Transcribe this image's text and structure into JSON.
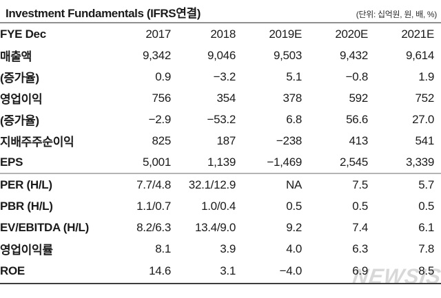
{
  "header": {
    "title": "Investment Fundamentals (IFRS연결)",
    "unit_note": "(단위: 십억원, 원, 배, %)"
  },
  "chart_data": {
    "type": "table",
    "title": "Investment Fundamentals (IFRS연결)",
    "unit": "십억원, 원, 배, %",
    "columns": [
      "FYE Dec",
      "2017",
      "2018",
      "2019E",
      "2020E",
      "2021E"
    ],
    "rows": [
      {
        "label": "매출액",
        "values": [
          "9,342",
          "9,046",
          "9,503",
          "9,432",
          "9,614"
        ]
      },
      {
        "label": "(증가율)",
        "values": [
          "0.9",
          "−3.2",
          "5.1",
          "−0.8",
          "1.9"
        ]
      },
      {
        "label": "영업이익",
        "values": [
          "756",
          "354",
          "378",
          "592",
          "752"
        ]
      },
      {
        "label": "(증가율)",
        "values": [
          "−2.9",
          "−53.2",
          "6.8",
          "56.6",
          "27.0"
        ]
      },
      {
        "label": "지배주주순이익",
        "values": [
          "825",
          "187",
          "−238",
          "413",
          "541"
        ]
      },
      {
        "label": "EPS",
        "values": [
          "5,001",
          "1,139",
          "−1,469",
          "2,545",
          "3,339"
        ],
        "section_end": true
      },
      {
        "label": "PER (H/L)",
        "values": [
          "7.7/4.8",
          "32.1/12.9",
          "NA",
          "7.5",
          "5.7"
        ]
      },
      {
        "label": "PBR (H/L)",
        "values": [
          "1.1/0.7",
          "1.0/0.4",
          "0.5",
          "0.5",
          "0.5"
        ]
      },
      {
        "label": "EV/EBITDA (H/L)",
        "values": [
          "8.2/6.3",
          "13.4/9.0",
          "9.2",
          "7.4",
          "6.1"
        ]
      },
      {
        "label": "영업이익률",
        "values": [
          "8.1",
          "3.9",
          "4.0",
          "6.3",
          "7.8"
        ]
      },
      {
        "label": "ROE",
        "values": [
          "14.6",
          "3.1",
          "−4.0",
          "6.9",
          "8.5"
        ]
      }
    ]
  },
  "watermark": {
    "text": "NEWSIS"
  },
  "colors": {
    "text": "#1a1a1a",
    "title_rule": "#8f8f8f",
    "section_rule": "#b4b4b4",
    "bottom_rule": "#3d3d3d",
    "watermark": "#d8d8d8",
    "background": "#ffffff"
  }
}
